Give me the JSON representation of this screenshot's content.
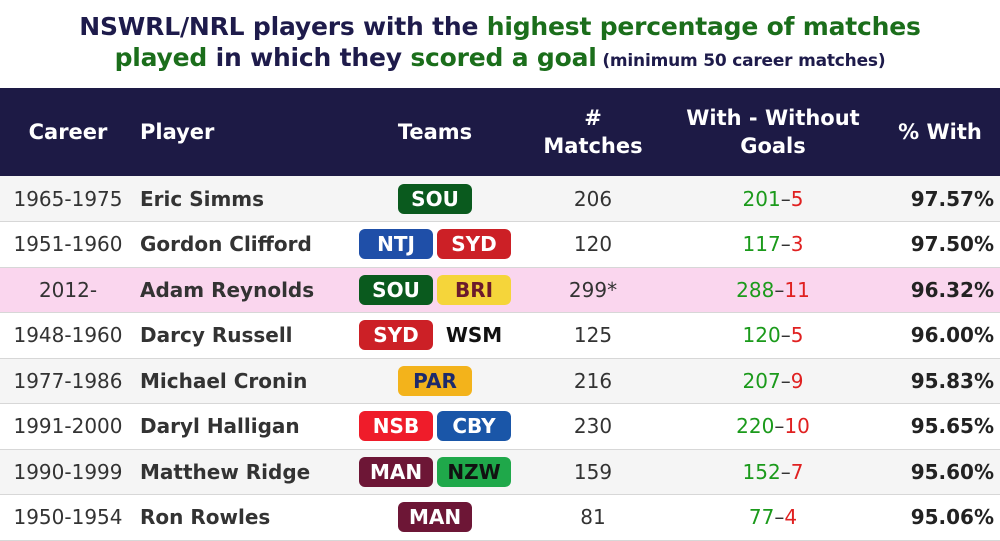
{
  "title": {
    "line1_a": "NSWRL/NRL players with the ",
    "line1_b": "highest percentage of matches",
    "line2_a": "played",
    "line2_b": " in which they ",
    "line2_c": "scored a goal",
    "line2_d": " (minimum 50 career matches)"
  },
  "colors": {
    "header_bg": "#1d1a45",
    "title_dark": "#1e1b4b",
    "title_green": "#1b6e1b",
    "with_green": "#1b9a1b",
    "without_red": "#e02020",
    "highlight_row": "#fad6ee"
  },
  "chart_data": {
    "type": "table",
    "columns": {
      "career": "Career",
      "player": "Player",
      "teams": "Teams",
      "matches_1": "#",
      "matches_2": "Matches",
      "wo_1": "With - Without",
      "wo_2": "Goals",
      "pct": "% With"
    },
    "team_colors": {
      "SOU": {
        "bg": "#0a5a1e",
        "fg": "#ffffff"
      },
      "NTJ": {
        "bg": "#1f4fa8",
        "fg": "#ffffff"
      },
      "SYD": {
        "bg": "#cc2026",
        "fg": "#ffffff"
      },
      "BRI": {
        "bg": "#f5d53a",
        "fg": "#6b1a2c"
      },
      "WSM": {
        "bg": "#ffffff",
        "fg": "#111111"
      },
      "PAR": {
        "bg": "#f3b31b",
        "fg": "#1d2a6b"
      },
      "NSB": {
        "bg": "#ef1c2a",
        "fg": "#ffffff"
      },
      "CBY": {
        "bg": "#1a56a8",
        "fg": "#ffffff"
      },
      "MAN": {
        "bg": "#6d1636",
        "fg": "#ffffff"
      },
      "NZW": {
        "bg": "#1fa84a",
        "fg": "#111111"
      }
    },
    "rows": [
      {
        "career": "1965-1975",
        "player": "Eric Simms",
        "teams": [
          "SOU"
        ],
        "matches": "206",
        "with": "201",
        "without": "5",
        "pct": "97.57%",
        "highlight": false
      },
      {
        "career": "1951-1960",
        "player": "Gordon Clifford",
        "teams": [
          "NTJ",
          "SYD"
        ],
        "matches": "120",
        "with": "117",
        "without": "3",
        "pct": "97.50%",
        "highlight": false
      },
      {
        "career": "2012-",
        "player": "Adam Reynolds",
        "teams": [
          "SOU",
          "BRI"
        ],
        "matches": "299*",
        "with": "288",
        "without": "11",
        "pct": "96.32%",
        "highlight": true
      },
      {
        "career": "1948-1960",
        "player": "Darcy Russell",
        "teams": [
          "SYD",
          "WSM"
        ],
        "matches": "125",
        "with": "120",
        "without": "5",
        "pct": "96.00%",
        "highlight": false
      },
      {
        "career": "1977-1986",
        "player": "Michael Cronin",
        "teams": [
          "PAR"
        ],
        "matches": "216",
        "with": "207",
        "without": "9",
        "pct": "95.83%",
        "highlight": false
      },
      {
        "career": "1991-2000",
        "player": "Daryl Halligan",
        "teams": [
          "NSB",
          "CBY"
        ],
        "matches": "230",
        "with": "220",
        "without": "10",
        "pct": "95.65%",
        "highlight": false
      },
      {
        "career": "1990-1999",
        "player": "Matthew Ridge",
        "teams": [
          "MAN",
          "NZW"
        ],
        "matches": "159",
        "with": "152",
        "without": "7",
        "pct": "95.60%",
        "highlight": false
      },
      {
        "career": "1950-1954",
        "player": "Ron Rowles",
        "teams": [
          "MAN"
        ],
        "matches": "81",
        "with": "77",
        "without": "4",
        "pct": "95.06%",
        "highlight": false
      }
    ]
  }
}
